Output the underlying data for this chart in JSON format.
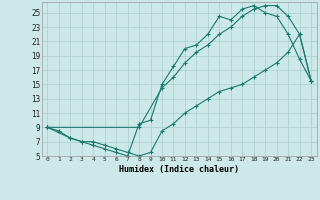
{
  "xlabel": "Humidex (Indice chaleur)",
  "bg_color": "#cce8e8",
  "grid_color": "#aacece",
  "line_color": "#1a7a6e",
  "xlim": [
    -0.5,
    23.5
  ],
  "ylim": [
    5,
    26.5
  ],
  "xticks": [
    0,
    1,
    2,
    3,
    4,
    5,
    6,
    7,
    8,
    9,
    10,
    11,
    12,
    13,
    14,
    15,
    16,
    17,
    18,
    19,
    20,
    21,
    22,
    23
  ],
  "yticks": [
    5,
    7,
    9,
    11,
    13,
    15,
    17,
    19,
    21,
    23,
    25
  ],
  "line1_x": [
    0,
    1,
    2,
    3,
    4,
    5,
    6,
    7,
    8,
    9,
    10,
    11,
    12,
    13,
    14,
    15,
    16,
    17,
    18,
    19,
    20,
    21,
    22,
    23
  ],
  "line1_y": [
    9,
    8.5,
    7.5,
    7,
    6.5,
    6,
    5.5,
    5,
    9.5,
    10,
    15,
    17.5,
    20,
    20.5,
    22,
    24.5,
    24,
    25.5,
    26,
    25,
    24.5,
    22,
    18.5,
    15.5
  ],
  "line2_x": [
    0,
    8,
    10,
    11,
    12,
    13,
    14,
    15,
    16,
    17,
    18,
    19,
    20,
    21,
    22,
    23
  ],
  "line2_y": [
    9,
    9,
    14.5,
    16,
    18,
    19.5,
    20.5,
    22,
    23,
    24.5,
    25.5,
    26,
    26,
    24.5,
    22,
    15.5
  ],
  "line3_x": [
    0,
    2,
    3,
    4,
    5,
    6,
    7,
    8,
    9,
    10,
    11,
    12,
    13,
    14,
    15,
    16,
    17,
    18,
    19,
    20,
    21,
    22,
    23
  ],
  "line3_y": [
    9,
    7.5,
    7,
    7,
    6.5,
    6,
    5.5,
    5,
    5.5,
    8.5,
    9.5,
    11,
    12,
    13,
    14,
    14.5,
    15,
    16,
    17,
    18,
    19.5,
    22,
    15.5
  ]
}
